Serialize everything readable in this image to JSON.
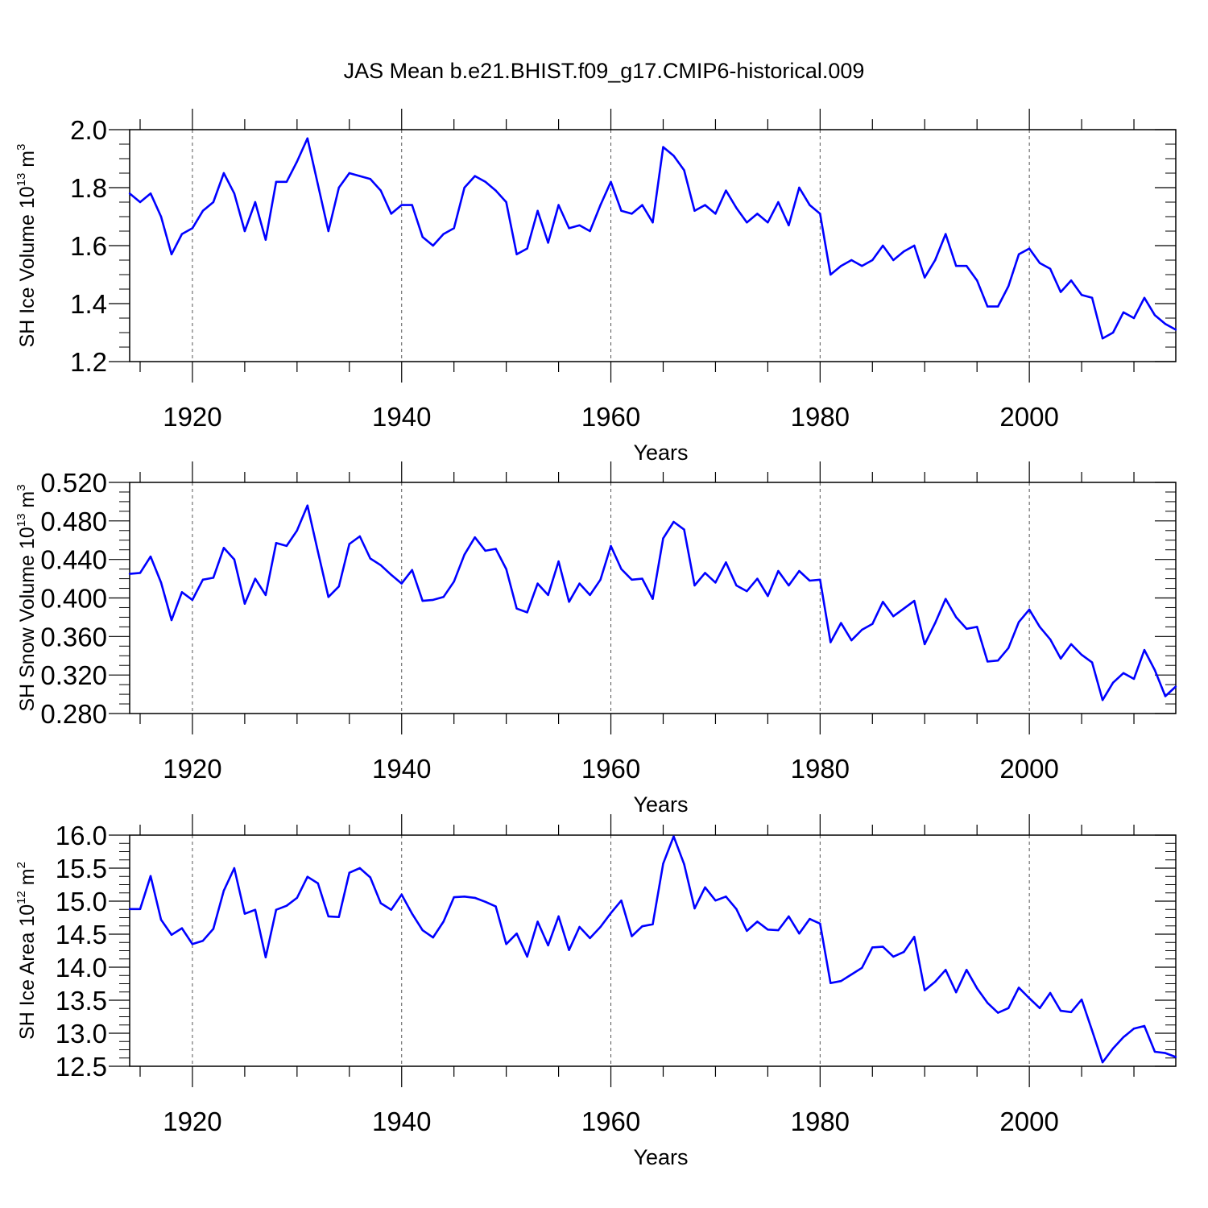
{
  "colors": {
    "series": "#0000ff",
    "axes": "#000000",
    "grid": "#555555",
    "background": "#ffffff"
  },
  "chart_data": [
    {
      "type": "line",
      "title": "JAS Mean b.e21.BHIST.f09_g17.CMIP6-historical.009",
      "xlabel": "Years",
      "ylabel": {
        "text": "SH Ice Volume 10",
        "exp": "13",
        "unit": " m",
        "unit_exp": "3"
      },
      "xlim": [
        1914,
        2014
      ],
      "ylim": [
        1.2,
        2.0
      ],
      "xticks": [
        1920,
        1940,
        1960,
        1980,
        2000
      ],
      "yticks": [
        "1.2",
        "1.4",
        "1.6",
        "1.8",
        "2.0"
      ],
      "grid": "vertical dashed at major x ticks",
      "x": [
        1914,
        1915,
        1916,
        1917,
        1918,
        1919,
        1920,
        1921,
        1922,
        1923,
        1924,
        1925,
        1926,
        1927,
        1928,
        1929,
        1930,
        1931,
        1932,
        1933,
        1934,
        1935,
        1936,
        1937,
        1938,
        1939,
        1940,
        1941,
        1942,
        1943,
        1944,
        1945,
        1946,
        1947,
        1948,
        1949,
        1950,
        1951,
        1952,
        1953,
        1954,
        1955,
        1956,
        1957,
        1958,
        1959,
        1960,
        1961,
        1962,
        1963,
        1964,
        1965,
        1966,
        1967,
        1968,
        1969,
        1970,
        1971,
        1972,
        1973,
        1974,
        1975,
        1976,
        1977,
        1978,
        1979,
        1980,
        1981,
        1982,
        1983,
        1984,
        1985,
        1986,
        1987,
        1988,
        1989,
        1990,
        1991,
        1992,
        1993,
        1994,
        1995,
        1996,
        1997,
        1998,
        1999,
        2000,
        2001,
        2002,
        2003,
        2004,
        2005,
        2006,
        2007,
        2008,
        2009,
        2010,
        2011,
        2012,
        2013,
        2014
      ],
      "series": [
        {
          "name": "SH Ice Volume",
          "values": [
            1.78,
            1.75,
            1.78,
            1.7,
            1.57,
            1.64,
            1.66,
            1.72,
            1.75,
            1.85,
            1.78,
            1.65,
            1.75,
            1.62,
            1.82,
            1.82,
            1.89,
            1.97,
            1.81,
            1.65,
            1.8,
            1.85,
            1.84,
            1.83,
            1.79,
            1.71,
            1.74,
            1.74,
            1.63,
            1.6,
            1.64,
            1.66,
            1.8,
            1.84,
            1.82,
            1.79,
            1.75,
            1.57,
            1.59,
            1.72,
            1.61,
            1.74,
            1.66,
            1.67,
            1.65,
            1.74,
            1.82,
            1.72,
            1.71,
            1.74,
            1.68,
            1.94,
            1.91,
            1.86,
            1.72,
            1.74,
            1.71,
            1.79,
            1.73,
            1.68,
            1.71,
            1.68,
            1.75,
            1.67,
            1.8,
            1.74,
            1.71,
            1.5,
            1.53,
            1.55,
            1.53,
            1.55,
            1.6,
            1.55,
            1.58,
            1.6,
            1.49,
            1.55,
            1.64,
            1.53,
            1.53,
            1.48,
            1.39,
            1.39,
            1.46,
            1.57,
            1.59,
            1.54,
            1.52,
            1.44,
            1.48,
            1.43,
            1.42,
            1.28,
            1.3,
            1.37,
            1.35,
            1.42,
            1.36,
            1.33,
            1.31
          ]
        }
      ]
    },
    {
      "type": "line",
      "title": "",
      "xlabel": "Years",
      "ylabel": {
        "text": "SH Snow Volume 10",
        "exp": "13",
        "unit": " m",
        "unit_exp": "3"
      },
      "xlim": [
        1914,
        2014
      ],
      "ylim": [
        0.28,
        0.52
      ],
      "xticks": [
        1920,
        1940,
        1960,
        1980,
        2000
      ],
      "yticks": [
        "0.280",
        "0.320",
        "0.360",
        "0.400",
        "0.440",
        "0.480",
        "0.520"
      ],
      "grid": "vertical dashed at major x ticks",
      "x": [
        1914,
        1915,
        1916,
        1917,
        1918,
        1919,
        1920,
        1921,
        1922,
        1923,
        1924,
        1925,
        1926,
        1927,
        1928,
        1929,
        1930,
        1931,
        1932,
        1933,
        1934,
        1935,
        1936,
        1937,
        1938,
        1939,
        1940,
        1941,
        1942,
        1943,
        1944,
        1945,
        1946,
        1947,
        1948,
        1949,
        1950,
        1951,
        1952,
        1953,
        1954,
        1955,
        1956,
        1957,
        1958,
        1959,
        1960,
        1961,
        1962,
        1963,
        1964,
        1965,
        1966,
        1967,
        1968,
        1969,
        1970,
        1971,
        1972,
        1973,
        1974,
        1975,
        1976,
        1977,
        1978,
        1979,
        1980,
        1981,
        1982,
        1983,
        1984,
        1985,
        1986,
        1987,
        1988,
        1989,
        1990,
        1991,
        1992,
        1993,
        1994,
        1995,
        1996,
        1997,
        1998,
        1999,
        2000,
        2001,
        2002,
        2003,
        2004,
        2005,
        2006,
        2007,
        2008,
        2009,
        2010,
        2011,
        2012,
        2013,
        2014
      ],
      "series": [
        {
          "name": "SH Snow Volume",
          "values": [
            0.425,
            0.426,
            0.443,
            0.416,
            0.377,
            0.406,
            0.398,
            0.419,
            0.421,
            0.452,
            0.44,
            0.394,
            0.42,
            0.403,
            0.457,
            0.454,
            0.47,
            0.496,
            0.448,
            0.401,
            0.412,
            0.456,
            0.464,
            0.441,
            0.434,
            0.424,
            0.415,
            0.429,
            0.397,
            0.398,
            0.401,
            0.417,
            0.445,
            0.463,
            0.449,
            0.451,
            0.43,
            0.389,
            0.385,
            0.415,
            0.403,
            0.438,
            0.396,
            0.415,
            0.403,
            0.419,
            0.454,
            0.43,
            0.419,
            0.42,
            0.399,
            0.462,
            0.479,
            0.471,
            0.413,
            0.426,
            0.416,
            0.437,
            0.413,
            0.407,
            0.42,
            0.402,
            0.428,
            0.413,
            0.428,
            0.418,
            0.419,
            0.354,
            0.374,
            0.356,
            0.367,
            0.373,
            0.396,
            0.381,
            0.389,
            0.397,
            0.352,
            0.374,
            0.399,
            0.38,
            0.368,
            0.37,
            0.334,
            0.335,
            0.348,
            0.375,
            0.388,
            0.37,
            0.357,
            0.337,
            0.352,
            0.341,
            0.333,
            0.294,
            0.312,
            0.322,
            0.316,
            0.346,
            0.325,
            0.298,
            0.308
          ]
        }
      ]
    },
    {
      "type": "line",
      "title": "",
      "xlabel": "Years",
      "ylabel": {
        "text": "SH Ice Area 10",
        "exp": "12",
        "unit": " m",
        "unit_exp": "2"
      },
      "xlim": [
        1914,
        2014
      ],
      "ylim": [
        12.5,
        16.0
      ],
      "xticks": [
        1920,
        1940,
        1960,
        1980,
        2000
      ],
      "yticks": [
        "12.5",
        "13.0",
        "13.5",
        "14.0",
        "14.5",
        "15.0",
        "15.5",
        "16.0"
      ],
      "grid": "vertical dashed at major x ticks",
      "x": [
        1914,
        1915,
        1916,
        1917,
        1918,
        1919,
        1920,
        1921,
        1922,
        1923,
        1924,
        1925,
        1926,
        1927,
        1928,
        1929,
        1930,
        1931,
        1932,
        1933,
        1934,
        1935,
        1936,
        1937,
        1938,
        1939,
        1940,
        1941,
        1942,
        1943,
        1944,
        1945,
        1946,
        1947,
        1948,
        1949,
        1950,
        1951,
        1952,
        1953,
        1954,
        1955,
        1956,
        1957,
        1958,
        1959,
        1960,
        1961,
        1962,
        1963,
        1964,
        1965,
        1966,
        1967,
        1968,
        1969,
        1970,
        1971,
        1972,
        1973,
        1974,
        1975,
        1976,
        1977,
        1978,
        1979,
        1980,
        1981,
        1982,
        1983,
        1984,
        1985,
        1986,
        1987,
        1988,
        1989,
        1990,
        1991,
        1992,
        1993,
        1994,
        1995,
        1996,
        1997,
        1998,
        1999,
        2000,
        2001,
        2002,
        2003,
        2004,
        2005,
        2006,
        2007,
        2008,
        2009,
        2010,
        2011,
        2012,
        2013,
        2014
      ],
      "series": [
        {
          "name": "SH Ice Area",
          "values": [
            14.88,
            14.88,
            15.38,
            14.72,
            14.49,
            14.59,
            14.35,
            14.4,
            14.58,
            15.16,
            15.5,
            14.81,
            14.87,
            14.15,
            14.87,
            14.93,
            15.05,
            15.37,
            15.27,
            14.77,
            14.76,
            15.43,
            15.5,
            15.36,
            14.97,
            14.87,
            15.1,
            14.81,
            14.56,
            14.45,
            14.69,
            15.06,
            15.07,
            15.05,
            14.99,
            14.92,
            14.35,
            14.51,
            14.16,
            14.69,
            14.33,
            14.77,
            14.26,
            14.61,
            14.44,
            14.61,
            14.82,
            15.01,
            14.47,
            14.62,
            14.65,
            15.57,
            15.98,
            15.56,
            14.89,
            15.21,
            15.01,
            15.07,
            14.88,
            14.55,
            14.69,
            14.57,
            14.56,
            14.77,
            14.51,
            14.73,
            14.66,
            13.76,
            13.79,
            13.89,
            13.99,
            14.3,
            14.31,
            14.16,
            14.23,
            14.46,
            13.65,
            13.78,
            13.96,
            13.62,
            13.96,
            13.68,
            13.46,
            13.31,
            13.38,
            13.69,
            13.53,
            13.38,
            13.61,
            13.34,
            13.32,
            13.51,
            13.04,
            12.56,
            12.77,
            12.94,
            13.07,
            13.11,
            12.72,
            12.7,
            12.64
          ]
        }
      ]
    }
  ]
}
